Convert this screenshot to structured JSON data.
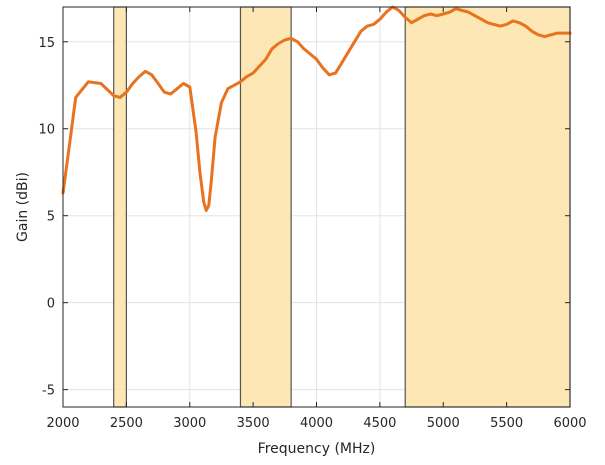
{
  "chart_data": {
    "type": "line",
    "title": "",
    "xlabel": "Frequency (MHz)",
    "ylabel": "Gain (dBi)",
    "xlim": [
      2000,
      6000
    ],
    "ylim": [
      -6,
      17
    ],
    "xticks": [
      2000,
      2500,
      3000,
      3500,
      4000,
      4500,
      5000,
      5500,
      6000
    ],
    "yticks": [
      -5,
      0,
      5,
      10,
      15
    ],
    "grid": true,
    "legend": "none",
    "colors": {
      "line": "#e8731e",
      "band_fill": "#fde6b0",
      "band_edge": "#555555",
      "grid": "#e3e3e3",
      "axes": "#262626"
    },
    "highlight_bands": [
      {
        "x0": 2400,
        "x1": 2500
      },
      {
        "x0": 3400,
        "x1": 3800
      },
      {
        "x0": 4700,
        "x1": 6000
      }
    ],
    "series": [
      {
        "x": [
          2000,
          2050,
          2100,
          2200,
          2300,
          2400,
          2450,
          2500,
          2550,
          2600,
          2650,
          2700,
          2750,
          2800,
          2850,
          2900,
          2950,
          3000,
          3050,
          3080,
          3110,
          3130,
          3150,
          3170,
          3200,
          3250,
          3300,
          3350,
          3400,
          3450,
          3500,
          3550,
          3600,
          3650,
          3700,
          3750,
          3800,
          3850,
          3900,
          3950,
          4000,
          4050,
          4100,
          4150,
          4200,
          4250,
          4300,
          4350,
          4400,
          4450,
          4500,
          4550,
          4600,
          4650,
          4700,
          4750,
          4800,
          4850,
          4900,
          4950,
          5000,
          5050,
          5100,
          5150,
          5200,
          5250,
          5300,
          5350,
          5400,
          5450,
          5500,
          5550,
          5600,
          5650,
          5700,
          5750,
          5800,
          5850,
          5900,
          5950,
          6000
        ],
        "y": [
          6.3,
          9.0,
          11.8,
          12.7,
          12.6,
          11.9,
          11.8,
          12.1,
          12.6,
          13.0,
          13.3,
          13.1,
          12.6,
          12.1,
          12.0,
          12.3,
          12.6,
          12.4,
          9.8,
          7.5,
          5.8,
          5.3,
          5.6,
          7.0,
          9.5,
          11.5,
          12.3,
          12.5,
          12.7,
          13.0,
          13.2,
          13.6,
          14.0,
          14.6,
          14.9,
          15.1,
          15.2,
          15.0,
          14.6,
          14.3,
          14.0,
          13.5,
          13.1,
          13.2,
          13.8,
          14.4,
          15.0,
          15.6,
          15.9,
          16.0,
          16.3,
          16.7,
          17.0,
          16.8,
          16.4,
          16.1,
          16.3,
          16.5,
          16.6,
          16.5,
          16.6,
          16.7,
          16.9,
          16.8,
          16.7,
          16.5,
          16.3,
          16.1,
          16.0,
          15.9,
          16.0,
          16.2,
          16.1,
          15.9,
          15.6,
          15.4,
          15.3,
          15.4,
          15.5,
          15.5,
          15.5
        ]
      }
    ]
  }
}
